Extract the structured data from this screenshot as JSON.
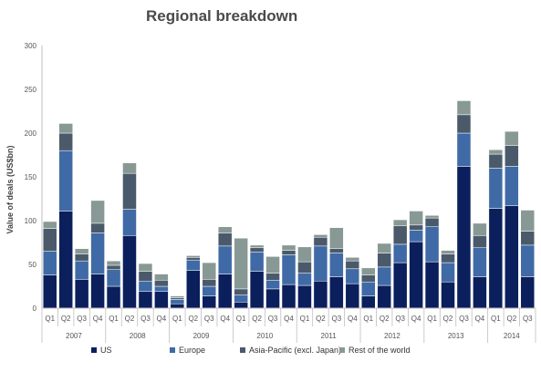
{
  "chart_data": {
    "type": "bar",
    "stacked": true,
    "title": "Regional breakdown",
    "ylabel": "Value of deals (US$bn)",
    "xlabel": "",
    "ylim": [
      0,
      300
    ],
    "yticks": [
      0,
      50,
      100,
      150,
      200,
      250,
      300
    ],
    "grid": false,
    "legend_position": "bottom",
    "categories": [
      "Q1",
      "Q2",
      "Q3",
      "Q4",
      "Q1",
      "Q2",
      "Q3",
      "Q4",
      "Q1",
      "Q2",
      "Q3",
      "Q4",
      "Q1",
      "Q2",
      "Q3",
      "Q4",
      "Q1",
      "Q2",
      "Q3",
      "Q4",
      "Q1",
      "Q2",
      "Q3",
      "Q4",
      "Q1",
      "Q2",
      "Q3",
      "Q4",
      "Q1",
      "Q2",
      "Q3"
    ],
    "year_groups": [
      {
        "label": "2007",
        "count": 4
      },
      {
        "label": "2008",
        "count": 4
      },
      {
        "label": "2009",
        "count": 4
      },
      {
        "label": "2010",
        "count": 4
      },
      {
        "label": "2011",
        "count": 4
      },
      {
        "label": "2012",
        "count": 4
      },
      {
        "label": "2013",
        "count": 4
      },
      {
        "label": "2014",
        "count": 3
      }
    ],
    "series": [
      {
        "name": "US",
        "color": "#0b1f5c",
        "values": [
          38,
          111,
          33,
          39,
          25,
          83,
          19,
          19,
          5,
          43,
          14,
          39,
          7,
          42,
          22,
          27,
          26,
          31,
          36,
          28,
          14,
          26,
          52,
          76,
          53,
          30,
          162,
          36,
          114,
          117,
          36
        ]
      },
      {
        "name": "Europe",
        "color": "#3f6aa6",
        "values": [
          27,
          69,
          21,
          47,
          19,
          30,
          12,
          6,
          5,
          12,
          11,
          32,
          8,
          22,
          10,
          34,
          14,
          40,
          27,
          17,
          16,
          21,
          21,
          13,
          40,
          22,
          38,
          33,
          46,
          45,
          36
        ]
      },
      {
        "name": "Asia-Pacific (excl. Japan)",
        "color": "#4b5a6b",
        "values": [
          26,
          20,
          8,
          11,
          5,
          41,
          11,
          7,
          2,
          3,
          8,
          15,
          7,
          5,
          8,
          5,
          13,
          10,
          5,
          9,
          8,
          16,
          21,
          6,
          10,
          10,
          21,
          14,
          16,
          24,
          16
        ]
      },
      {
        "name": "Rest of the world",
        "color": "#889995",
        "values": [
          8,
          11,
          6,
          26,
          5,
          12,
          9,
          7,
          2,
          2,
          19,
          7,
          58,
          3,
          19,
          6,
          17,
          3,
          24,
          4,
          8,
          11,
          7,
          16,
          3,
          4,
          16,
          14,
          5,
          16,
          24
        ]
      }
    ]
  }
}
